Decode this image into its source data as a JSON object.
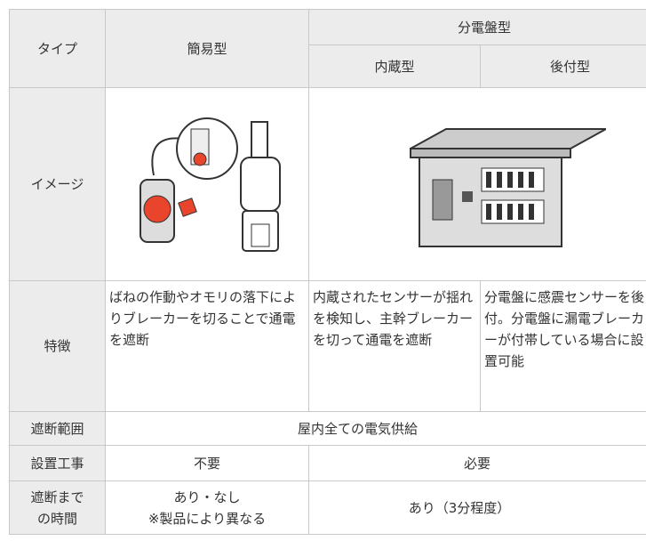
{
  "table": {
    "header": {
      "type": "タイプ",
      "simple": "簡易型",
      "panel": "分電盤型",
      "builtin": "内蔵型",
      "retrofit": "後付型"
    },
    "rows": [
      {
        "label": "イメージ"
      },
      {
        "label": "特徴",
        "simple": "ばねの作動やオモリの落下によりブレーカーを切ることで通電を遮断",
        "builtin": "内蔵されたセンサーが揺れを検知し、主幹ブレーカーを切って通電を遮断",
        "retrofit": "分電盤に感震センサーを後付。分電盤に漏電ブレーカーが付帯している場合に設置可能"
      },
      {
        "label": "遮断範囲",
        "all": "屋内全ての電気供給"
      },
      {
        "label": "設置工事",
        "simple": "不要",
        "panel": "必要"
      },
      {
        "label": [
          "遮断まで",
          "の時間"
        ],
        "simple": [
          "あり・なし",
          "※製品により異なる"
        ],
        "panel": "あり（3分程度）"
      }
    ]
  }
}
